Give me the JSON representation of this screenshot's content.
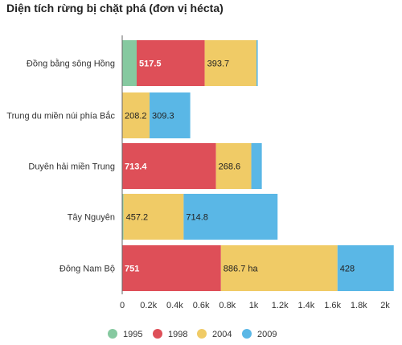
{
  "chart_data": {
    "type": "bar",
    "orientation": "horizontal",
    "stacked": true,
    "title": "Diện tích rừng bị chặt phá (đơn vị hécta)",
    "categories": [
      "Đồng bằng sông Hồng",
      "Trung du miền núi phía Bắc",
      "Duyên hải miền Trung",
      "Tây Nguyên",
      "Đông Nam Bộ"
    ],
    "series": [
      {
        "name": "1995",
        "color": "#86c9a0",
        "values": [
          110,
          0,
          0,
          10,
          0
        ],
        "labels": [
          "",
          "",
          "",
          "",
          ""
        ]
      },
      {
        "name": "1998",
        "color": "#de4f58",
        "values": [
          517.5,
          0,
          713.4,
          0,
          751
        ],
        "labels": [
          "517.5",
          "",
          "713.4",
          "",
          "751"
        ]
      },
      {
        "name": "2004",
        "color": "#f0cb66",
        "values": [
          393.7,
          208.2,
          268.6,
          457.2,
          886.7
        ],
        "labels": [
          "393.7",
          "208.2",
          "268.6",
          "457.2",
          "886.7 ha"
        ]
      },
      {
        "name": "2009",
        "color": "#5ab7e6",
        "values": [
          10,
          309.3,
          80,
          714.8,
          428
        ],
        "labels": [
          "",
          "309.3",
          "",
          "714.8",
          "428"
        ]
      }
    ],
    "x_ticks": [
      "0",
      "0.2k",
      "0.4k",
      "0.6k",
      "0.8k",
      "1k",
      "1.2k",
      "1.4k",
      "1.6k",
      "1.8k",
      "2k"
    ],
    "xlim": [
      0,
      2100
    ],
    "grid": false,
    "legend_position": "bottom"
  }
}
